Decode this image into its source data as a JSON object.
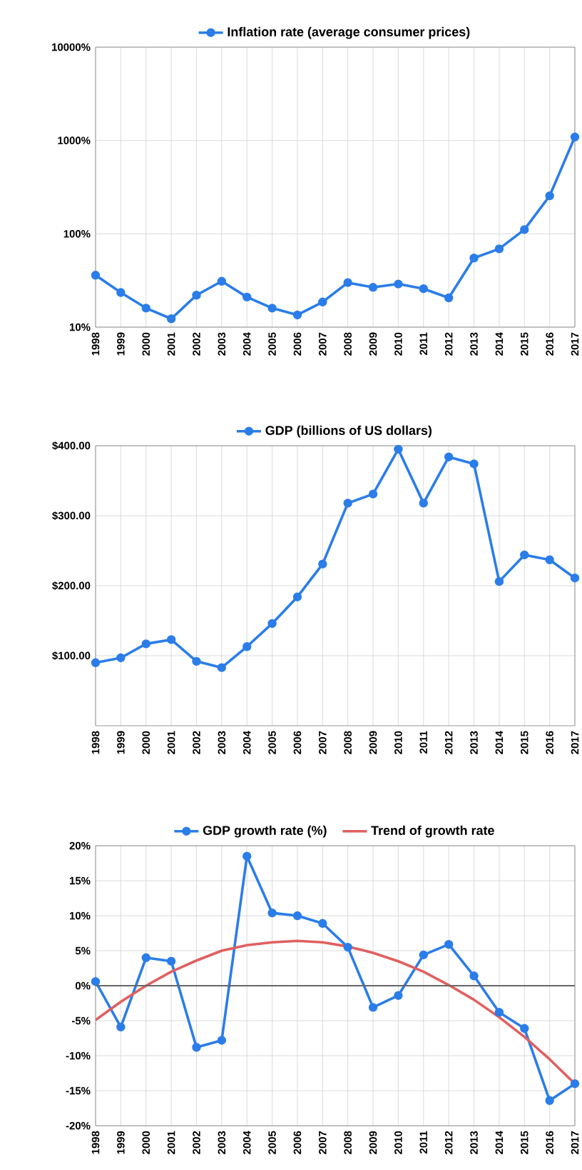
{
  "chart_data": [
    {
      "type": "line",
      "log": "y",
      "grid": true,
      "legend": "top",
      "marker": "circle",
      "categories": [
        "1998",
        "1999",
        "2000",
        "2001",
        "2002",
        "2003",
        "2004",
        "2005",
        "2006",
        "2007",
        "2008",
        "2009",
        "2010",
        "2011",
        "2012",
        "2013",
        "2014",
        "2015",
        "2016",
        "2017"
      ],
      "ylim": [
        10,
        10000
      ],
      "yticks": [
        {
          "value": 10,
          "label": "10%"
        },
        {
          "value": 100,
          "label": "100%"
        },
        {
          "value": 1000,
          "label": "1000%"
        },
        {
          "value": 10000,
          "label": "10000%"
        }
      ],
      "series": [
        {
          "name": "Inflation rate (average consumer prices)",
          "color": "#2b7de9",
          "values": [
            36,
            23.5,
            16,
            12.3,
            22,
            31,
            21,
            16,
            13.5,
            18.6,
            30,
            26.7,
            29,
            25.8,
            20.6,
            55,
            69,
            111,
            255,
            1090
          ]
        }
      ]
    },
    {
      "type": "line",
      "grid": true,
      "legend": "top",
      "marker": "circle",
      "categories": [
        "1998",
        "1999",
        "2000",
        "2001",
        "2002",
        "2003",
        "2004",
        "2005",
        "2006",
        "2007",
        "2008",
        "2009",
        "2010",
        "2011",
        "2012",
        "2013",
        "2014",
        "2015",
        "2016",
        "2017"
      ],
      "ylim": [
        0,
        400
      ],
      "yticks": [
        {
          "value": 100,
          "label": "$100.00"
        },
        {
          "value": 200,
          "label": "$200.00"
        },
        {
          "value": 300,
          "label": "$300.00"
        },
        {
          "value": 400,
          "label": "$400.00"
        }
      ],
      "series": [
        {
          "name": "GDP (billions of US dollars)",
          "color": "#2b7de9",
          "values": [
            90,
            97,
            117,
            123,
            92,
            83,
            113,
            146,
            184,
            231,
            318,
            331,
            395,
            318,
            384,
            374,
            206,
            244,
            237,
            211
          ]
        }
      ]
    },
    {
      "type": "line",
      "grid": true,
      "legend": "top",
      "categories": [
        "1998",
        "1999",
        "2000",
        "2001",
        "2002",
        "2003",
        "2004",
        "2005",
        "2006",
        "2007",
        "2008",
        "2009",
        "2010",
        "2011",
        "2012",
        "2013",
        "2014",
        "2015",
        "2016",
        "2017"
      ],
      "ylim": [
        -20,
        20
      ],
      "yticks": [
        {
          "value": -20,
          "label": "-20%"
        },
        {
          "value": -15,
          "label": "-15%"
        },
        {
          "value": -10,
          "label": "-10%"
        },
        {
          "value": -5,
          "label": "-5%"
        },
        {
          "value": 0,
          "label": "0%"
        },
        {
          "value": 5,
          "label": "5%"
        },
        {
          "value": 10,
          "label": "10%"
        },
        {
          "value": 15,
          "label": "15%"
        },
        {
          "value": 20,
          "label": "20%"
        }
      ],
      "ref_lines": [
        {
          "axis": "y",
          "value": 0,
          "color": "#666666"
        }
      ],
      "series": [
        {
          "name": "GDP growth rate (%)",
          "color": "#2b7de9",
          "marker": "circle",
          "values": [
            0.6,
            -5.9,
            4.0,
            3.5,
            -8.8,
            -7.8,
            18.5,
            10.4,
            10.0,
            8.9,
            5.5,
            -3.1,
            -1.4,
            4.4,
            5.9,
            1.4,
            -3.8,
            -6.1,
            -16.4,
            -14.0
          ]
        },
        {
          "name": "Trend of growth rate",
          "color": "#e06060",
          "marker": "none",
          "values": [
            -4.9,
            -2.3,
            0,
            2.0,
            3.6,
            5.0,
            5.8,
            6.2,
            6.4,
            6.2,
            5.6,
            4.7,
            3.5,
            2.0,
            0.1,
            -2.0,
            -4.5,
            -7.3,
            -10.5,
            -14.0
          ]
        }
      ]
    }
  ]
}
